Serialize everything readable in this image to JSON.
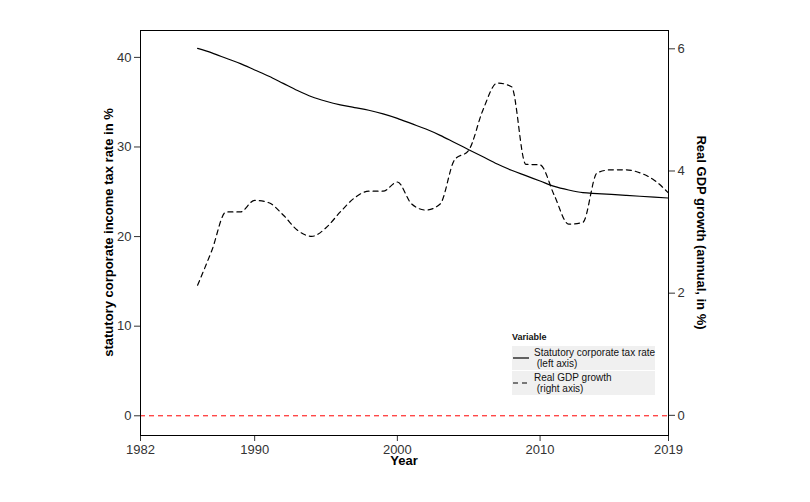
{
  "chart_data": {
    "type": "line",
    "x_label": "Year",
    "y_label": "statutory corporate income tax rate in %",
    "y2_label": "Real GDP growth (annual, in %)",
    "x": [
      1986,
      1987,
      1988,
      1989,
      1990,
      1991,
      1992,
      1993,
      1994,
      1995,
      1996,
      1997,
      1998,
      1999,
      2000,
      2001,
      2002,
      2003,
      2004,
      2005,
      2006,
      2007,
      2008,
      2009,
      2010,
      2011,
      2012,
      2013,
      2014,
      2015,
      2016,
      2017,
      2018,
      2019
    ],
    "xlim": [
      1982,
      2019
    ],
    "xticks": [
      1982,
      1990,
      2000,
      2010,
      2019
    ],
    "ylim": [
      -2.2,
      43
    ],
    "yticks": [
      0,
      10,
      20,
      30,
      40
    ],
    "y2lim": [
      -0.33,
      6.3
    ],
    "y2ticks": [
      0,
      2,
      4,
      6
    ],
    "legend": "lower right",
    "legend_title": "Variable",
    "reference_line": {
      "value": 0,
      "color": "#ff0000",
      "line_style": "dashed"
    },
    "series": [
      {
        "name": "Statutory corporate tax rate\n (left axis)",
        "color": "#000000",
        "line_style": "solid",
        "axis": "y",
        "values": [
          41.0,
          40.5,
          39.9,
          39.3,
          38.6,
          37.9,
          37.1,
          36.3,
          35.6,
          35.1,
          34.7,
          34.4,
          34.1,
          33.7,
          33.2,
          32.6,
          32.0,
          31.3,
          30.5,
          29.7,
          28.9,
          28.1,
          27.4,
          26.8,
          26.2,
          25.6,
          25.2,
          24.9,
          24.8,
          24.7,
          24.6,
          24.5,
          24.4,
          24.3
        ]
      },
      {
        "name": "Real GDP growth\n (right axis)",
        "color": "#000000",
        "line_style": "dashed",
        "axis": "y2",
        "values": [
          2.13,
          2.7,
          3.33,
          3.33,
          3.52,
          3.48,
          3.28,
          3.03,
          2.93,
          3.07,
          3.33,
          3.56,
          3.67,
          3.67,
          3.82,
          3.46,
          3.36,
          3.46,
          4.18,
          4.34,
          5.0,
          5.44,
          5.38,
          4.11,
          4.1,
          3.6,
          3.13,
          3.16,
          3.97,
          4.02,
          4.02,
          3.97,
          3.85,
          3.64
        ]
      }
    ]
  }
}
